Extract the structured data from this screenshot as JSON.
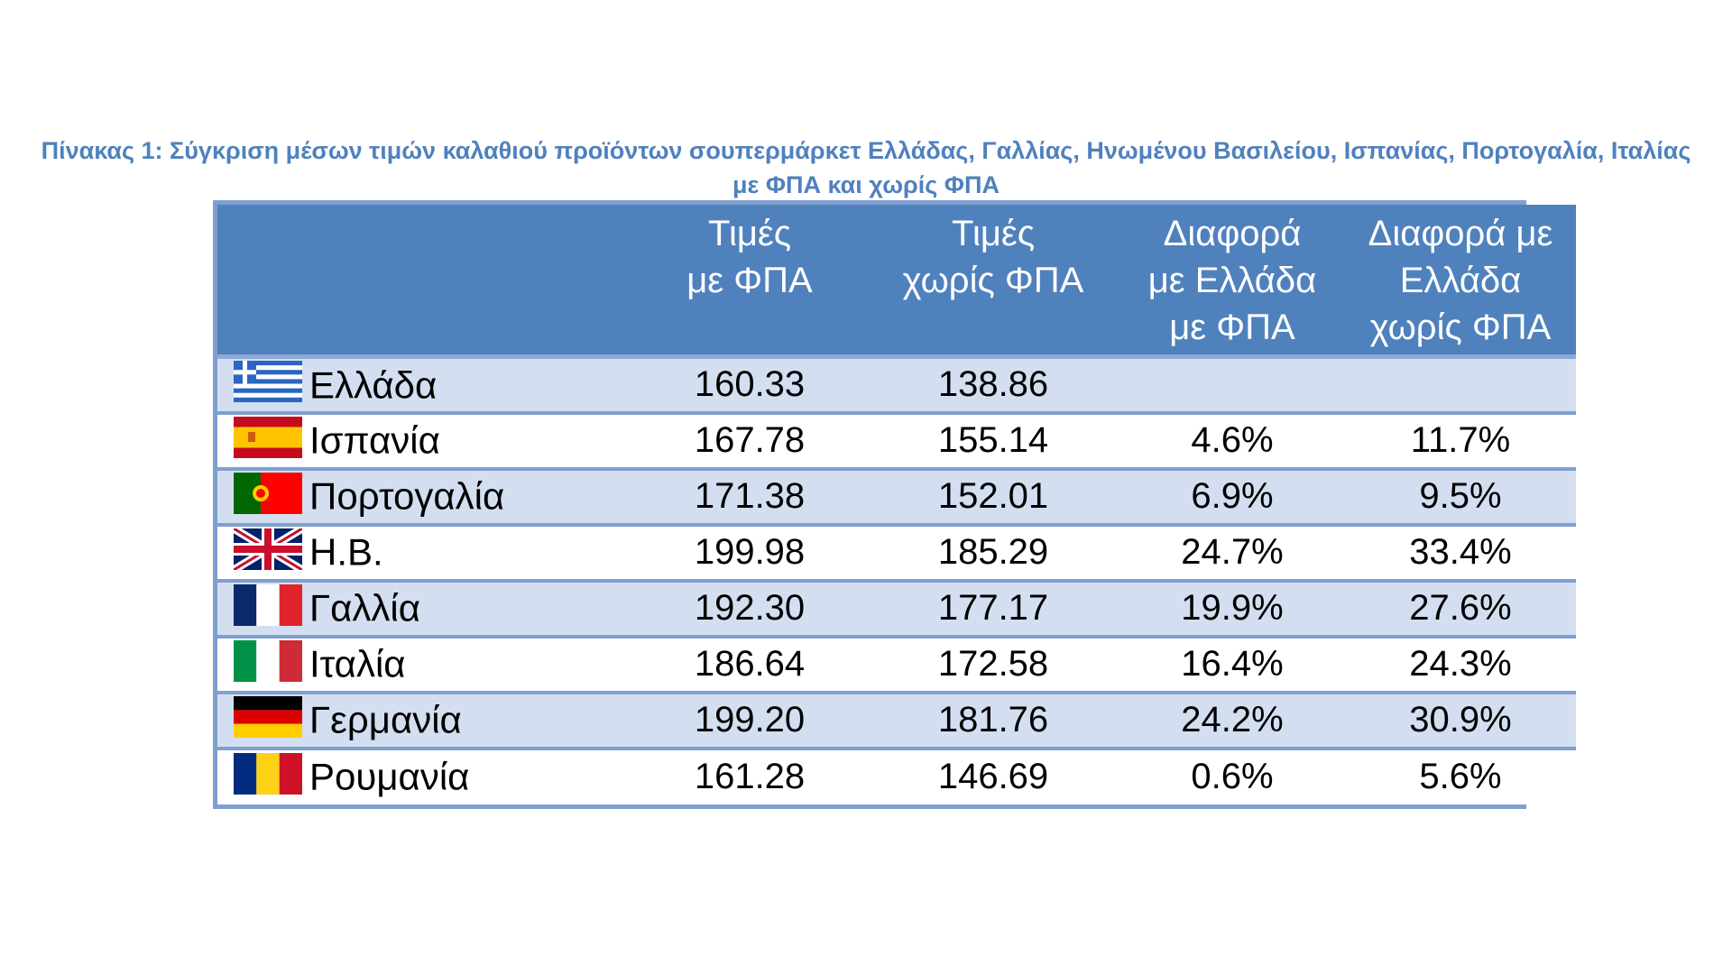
{
  "caption": {
    "line1": "Πίνακας 1: Σύγκριση μέσων τιμών καλαθιού προϊόντων σουπερμάρκετ Ελλάδας, Γαλλίας, Ηνωμένου Βασιλείου, Ισπανίας, Πορτογαλία, Ιταλίας",
    "line2": "με ΦΠΑ και χωρίς ΦΠΑ"
  },
  "table": {
    "headers": [
      {
        "line1": "",
        "line2": "",
        "line3": ""
      },
      {
        "line1": "Τιμές",
        "line2": "με ΦΠΑ",
        "line3": ""
      },
      {
        "line1": "Τιμές",
        "line2": "χωρίς ΦΠΑ",
        "line3": ""
      },
      {
        "line1": "Διαφορά",
        "line2": "με Ελλάδα",
        "line3": "με ΦΠΑ"
      },
      {
        "line1": "Διαφορά με",
        "line2": "Ελλάδα",
        "line3": "χωρίς ΦΠΑ"
      }
    ],
    "rows": [
      {
        "flag": "greece-flag-icon",
        "country": "Ελλάδα",
        "price_vat": "160.33",
        "price_novat": "138.86",
        "diff_vat": "",
        "diff_novat": ""
      },
      {
        "flag": "spain-flag-icon",
        "country": "Ισπανία",
        "price_vat": "167.78",
        "price_novat": "155.14",
        "diff_vat": "4.6%",
        "diff_novat": "11.7%"
      },
      {
        "flag": "portugal-flag-icon",
        "country": "Πορτογαλία",
        "price_vat": "171.38",
        "price_novat": "152.01",
        "diff_vat": "6.9%",
        "diff_novat": "9.5%"
      },
      {
        "flag": "uk-flag-icon",
        "country": "Η.Β.",
        "price_vat": "199.98",
        "price_novat": "185.29",
        "diff_vat": "24.7%",
        "diff_novat": "33.4%"
      },
      {
        "flag": "france-flag-icon",
        "country": "Γαλλία",
        "price_vat": "192.30",
        "price_novat": "177.17",
        "diff_vat": "19.9%",
        "diff_novat": "27.6%"
      },
      {
        "flag": "italy-flag-icon",
        "country": "Ιταλία",
        "price_vat": "186.64",
        "price_novat": "172.58",
        "diff_vat": "16.4%",
        "diff_novat": "24.3%"
      },
      {
        "flag": "germany-flag-icon",
        "country": "Γερμανία",
        "price_vat": "199.20",
        "price_novat": "181.76",
        "diff_vat": "24.2%",
        "diff_novat": "30.9%"
      },
      {
        "flag": "romania-flag-icon",
        "country": "Ρουμανία",
        "price_vat": "161.28",
        "price_novat": "146.69",
        "diff_vat": "0.6%",
        "diff_novat": "5.6%"
      }
    ]
  },
  "colors": {
    "caption": "#4f81bd",
    "header_bg": "#4f81bd",
    "border": "#7f9fd0",
    "band": "#d3dff0"
  }
}
